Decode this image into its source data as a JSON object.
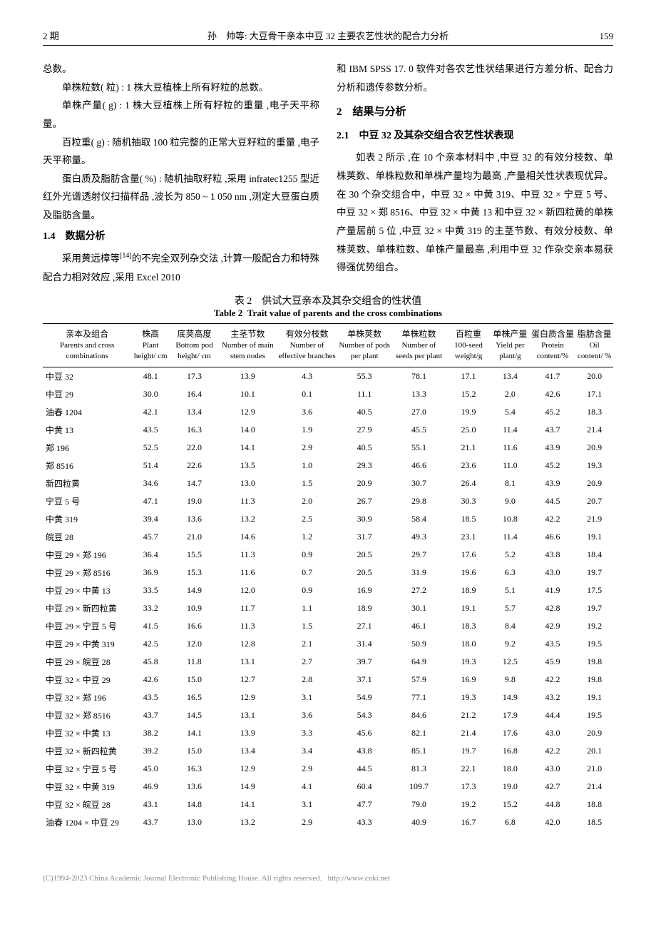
{
  "header": {
    "issue": "2 期",
    "title": "孙　帅等: 大豆骨干亲本中豆 32 主要农艺性状的配合力分析",
    "page": "159"
  },
  "left_col": {
    "p1": "总数。",
    "p2": "单株粒数( 粒) : 1 株大豆植株上所有籽粒的总数。",
    "p3": "单株产量( g) : 1 株大豆植株上所有籽粒的重量 ,电子天平称量。",
    "p4": "百粒重( g) : 随机抽取 100 粒完整的正常大豆籽粒的重量 ,电子天平称量。",
    "p5": "蛋白质及脂肪含量( %) : 随机抽取籽粒 ,采用 infratec1255 型近红外光谱透射仪扫描样品 ,波长为 850 ~ 1 050 nm ,测定大豆蛋白质及脂肪含量。",
    "s14": "1.4　数据分析",
    "p6a": "采用黄远樟等",
    "p6sup": "[14]",
    "p6b": "的不完全双列杂交法 ,计算一般配合力和特殊配合力相对效应 ,采用 Excel 2010"
  },
  "right_col": {
    "p1": "和 IBM SPSS 17. 0 软件对各农艺性状结果进行方差分析、配合力分析和遗传参数分析。",
    "s2": "2　结果与分析",
    "s21": "2.1　中豆 32 及其杂交组合农艺性状表现",
    "p2": "如表 2 所示 ,在 10 个亲本材料中 ,中豆 32 的有效分枝数、单株荚数、单株粒数和单株产量均为最高 ,产量相关性状表现优异。在 30 个杂交组合中，中豆 32 × 中黄 319、中豆 32 × 宁豆 5 号、中豆 32 × 郑 8516、中豆 32 × 中黄 13 和中豆 32 × 新四粒黄的单株产量居前 5 位 ,中豆 32 × 中黄 319 的主茎节数、有效分枝数、单株荚数、单株粒数、单株产量最高 ,利用中豆 32 作杂交亲本易获得强优势组合。"
  },
  "table": {
    "caption_cn": "表 2　供试大豆亲本及其杂交组合的性状值",
    "caption_en_label": "Table 2",
    "caption_en": "Trait value of parents and the cross combinations",
    "columns": [
      {
        "cn": "亲本及组合",
        "en": "Parents and cross combinations"
      },
      {
        "cn": "株高",
        "en": "Plant height/ cm"
      },
      {
        "cn": "底荚高度",
        "en": "Bottom pod height/ cm"
      },
      {
        "cn": "主茎节数",
        "en": "Number of main stem nodes"
      },
      {
        "cn": "有效分枝数",
        "en": "Number of effective branches"
      },
      {
        "cn": "单株荚数",
        "en": "Number of pods per plant"
      },
      {
        "cn": "单株粒数",
        "en": "Number of seeds per plant"
      },
      {
        "cn": "百粒重",
        "en": "100-seed weight/g"
      },
      {
        "cn": "单株产量",
        "en": "Yield per plant/g"
      },
      {
        "cn": "蛋白质含量",
        "en": "Protein content/%"
      },
      {
        "cn": "脂肪含量",
        "en": "Oil content/ %"
      }
    ],
    "rows": [
      [
        "中豆 32",
        "48.1",
        "17.3",
        "13.9",
        "4.3",
        "55.3",
        "78.1",
        "17.1",
        "13.4",
        "41.7",
        "20.0"
      ],
      [
        "中豆 29",
        "30.0",
        "16.4",
        "10.1",
        "0.1",
        "11.1",
        "13.3",
        "15.2",
        "2.0",
        "42.6",
        "17.1"
      ],
      [
        "油春 1204",
        "42.1",
        "13.4",
        "12.9",
        "3.6",
        "40.5",
        "27.0",
        "19.9",
        "5.4",
        "45.2",
        "18.3"
      ],
      [
        "中黄 13",
        "43.5",
        "16.3",
        "14.0",
        "1.9",
        "27.9",
        "45.5",
        "25.0",
        "11.4",
        "43.7",
        "21.4"
      ],
      [
        "郑 196",
        "52.5",
        "22.0",
        "14.1",
        "2.9",
        "40.5",
        "55.1",
        "21.1",
        "11.6",
        "43.9",
        "20.9"
      ],
      [
        "郑 8516",
        "51.4",
        "22.6",
        "13.5",
        "1.0",
        "29.3",
        "46.6",
        "23.6",
        "11.0",
        "45.2",
        "19.3"
      ],
      [
        "新四粒黄",
        "34.6",
        "14.7",
        "13.0",
        "1.5",
        "20.9",
        "30.7",
        "26.4",
        "8.1",
        "43.9",
        "20.9"
      ],
      [
        "宁豆 5 号",
        "47.1",
        "19.0",
        "11.3",
        "2.0",
        "26.7",
        "29.8",
        "30.3",
        "9.0",
        "44.5",
        "20.7"
      ],
      [
        "中黄 319",
        "39.4",
        "13.6",
        "13.2",
        "2.5",
        "30.9",
        "58.4",
        "18.5",
        "10.8",
        "42.2",
        "21.9"
      ],
      [
        "皖豆 28",
        "45.7",
        "21.0",
        "14.6",
        "1.2",
        "31.7",
        "49.3",
        "23.1",
        "11.4",
        "46.6",
        "19.1"
      ],
      [
        "中豆 29 × 郑 196",
        "36.4",
        "15.5",
        "11.3",
        "0.9",
        "20.5",
        "29.7",
        "17.6",
        "5.2",
        "43.8",
        "18.4"
      ],
      [
        "中豆 29 × 郑 8516",
        "36.9",
        "15.3",
        "11.6",
        "0.7",
        "20.5",
        "31.9",
        "19.6",
        "6.3",
        "43.0",
        "19.7"
      ],
      [
        "中豆 29 × 中黄 13",
        "33.5",
        "14.9",
        "12.0",
        "0.9",
        "16.9",
        "27.2",
        "18.9",
        "5.1",
        "41.9",
        "17.5"
      ],
      [
        "中豆 29 × 新四粒黄",
        "33.2",
        "10.9",
        "11.7",
        "1.1",
        "18.9",
        "30.1",
        "19.1",
        "5.7",
        "42.8",
        "19.7"
      ],
      [
        "中豆 29 × 宁豆 5 号",
        "41.5",
        "16.6",
        "11.3",
        "1.5",
        "27.1",
        "46.1",
        "18.3",
        "8.4",
        "42.9",
        "19.2"
      ],
      [
        "中豆 29 × 中黄 319",
        "42.5",
        "12.0",
        "12.8",
        "2.1",
        "31.4",
        "50.9",
        "18.0",
        "9.2",
        "43.5",
        "19.5"
      ],
      [
        "中豆 29 × 皖豆 28",
        "45.8",
        "11.8",
        "13.1",
        "2.7",
        "39.7",
        "64.9",
        "19.3",
        "12.5",
        "45.9",
        "19.8"
      ],
      [
        "中豆 32 × 中豆 29",
        "42.6",
        "15.0",
        "12.7",
        "2.8",
        "37.1",
        "57.9",
        "16.9",
        "9.8",
        "42.2",
        "19.8"
      ],
      [
        "中豆 32 × 郑 196",
        "43.5",
        "16.5",
        "12.9",
        "3.1",
        "54.9",
        "77.1",
        "19.3",
        "14.9",
        "43.2",
        "19.1"
      ],
      [
        "中豆 32 × 郑 8516",
        "43.7",
        "14.5",
        "13.1",
        "3.6",
        "54.3",
        "84.6",
        "21.2",
        "17.9",
        "44.4",
        "19.5"
      ],
      [
        "中豆 32 × 中黄 13",
        "38.2",
        "14.1",
        "13.9",
        "3.3",
        "45.6",
        "82.1",
        "21.4",
        "17.6",
        "43.0",
        "20.9"
      ],
      [
        "中豆 32 × 新四粒黄",
        "39.2",
        "15.0",
        "13.4",
        "3.4",
        "43.8",
        "85.1",
        "19.7",
        "16.8",
        "42.2",
        "20.1"
      ],
      [
        "中豆 32 × 宁豆 5 号",
        "45.0",
        "16.3",
        "12.9",
        "2.9",
        "44.5",
        "81.3",
        "22.1",
        "18.0",
        "43.0",
        "21.0"
      ],
      [
        "中豆 32 × 中黄 319",
        "46.9",
        "13.6",
        "14.9",
        "4.1",
        "60.4",
        "109.7",
        "17.3",
        "19.0",
        "42.7",
        "21.4"
      ],
      [
        "中豆 32 × 皖豆 28",
        "43.1",
        "14.8",
        "14.1",
        "3.1",
        "47.7",
        "79.0",
        "19.2",
        "15.2",
        "44.8",
        "18.8"
      ],
      [
        "油春 1204 × 中豆 29",
        "43.7",
        "13.0",
        "13.2",
        "2.9",
        "43.3",
        "40.9",
        "16.7",
        "6.8",
        "42.0",
        "18.5"
      ]
    ]
  },
  "footer": {
    "text": "(C)1994-2023 China Academic Journal Electronic Publishing House. All rights reserved.",
    "url": "http://www.cnki.net"
  }
}
